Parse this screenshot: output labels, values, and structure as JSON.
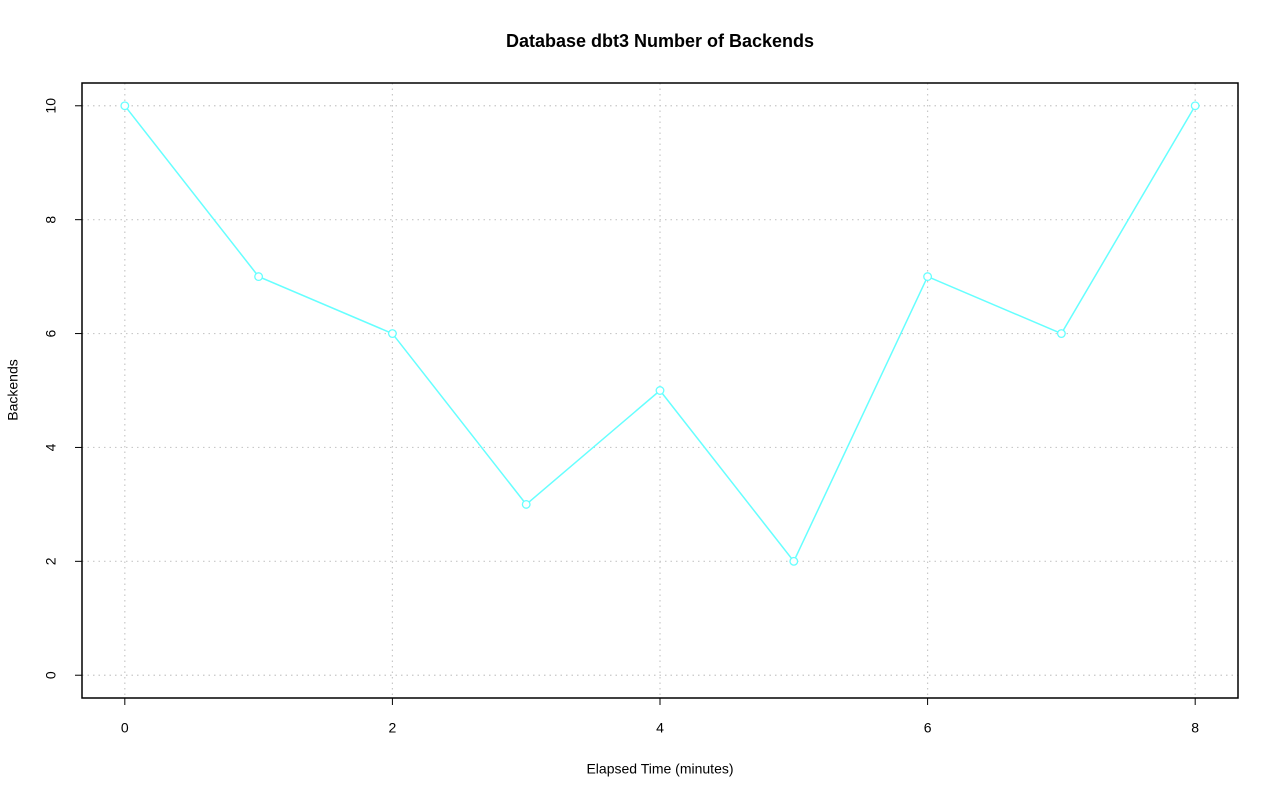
{
  "chart_data": {
    "type": "line",
    "title": "Database dbt3 Number of Backends",
    "xlabel": "Elapsed Time (minutes)",
    "ylabel": "Backends",
    "x": [
      0,
      1,
      2,
      3,
      4,
      5,
      6,
      7,
      8
    ],
    "values": [
      10,
      7,
      6,
      3,
      5,
      2,
      7,
      6,
      10
    ],
    "color": "#66ffff",
    "xlim": [
      -0.32,
      8.32
    ],
    "ylim": [
      -0.4,
      10.4
    ],
    "xticks": [
      0,
      2,
      4,
      6,
      8
    ],
    "yticks": [
      0,
      2,
      4,
      6,
      8,
      10
    ],
    "grid": true
  }
}
